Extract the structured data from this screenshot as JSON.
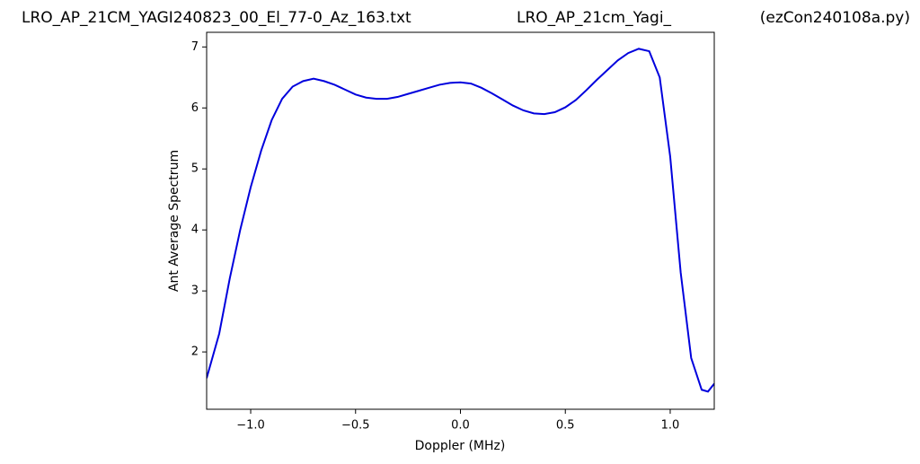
{
  "chart_data": {
    "type": "line",
    "title": "LRO_AP_21CM_YAGI240823_00_El_77-0_Az_163.txt",
    "subtitle": "LRO_AP_21cm_Yagi_",
    "annotation": "(ezCon240108a.py)",
    "x_label": "Doppler (MHz)",
    "y_label": "Ant Average Spectrum",
    "x": [
      -1.21,
      -1.15,
      -1.1,
      -1.05,
      -1.0,
      -0.95,
      -0.9,
      -0.85,
      -0.8,
      -0.75,
      -0.7,
      -0.65,
      -0.6,
      -0.55,
      -0.5,
      -0.45,
      -0.4,
      -0.35,
      -0.3,
      -0.25,
      -0.2,
      -0.15,
      -0.1,
      -0.05,
      0.0,
      0.05,
      0.1,
      0.15,
      0.2,
      0.25,
      0.3,
      0.35,
      0.4,
      0.45,
      0.5,
      0.55,
      0.6,
      0.65,
      0.7,
      0.75,
      0.8,
      0.85,
      0.9,
      0.95,
      1.0,
      1.05,
      1.1,
      1.15,
      1.18,
      1.21
    ],
    "series": [
      {
        "name": "Ant Average Spectrum",
        "color": "#0000dd",
        "values": [
          1.57,
          2.3,
          3.2,
          4.0,
          4.7,
          5.3,
          5.8,
          6.15,
          6.35,
          6.44,
          6.48,
          6.44,
          6.38,
          6.3,
          6.22,
          6.17,
          6.15,
          6.15,
          6.18,
          6.23,
          6.28,
          6.33,
          6.38,
          6.41,
          6.42,
          6.4,
          6.33,
          6.24,
          6.14,
          6.04,
          5.96,
          5.91,
          5.9,
          5.93,
          6.01,
          6.13,
          6.29,
          6.46,
          6.62,
          6.78,
          6.9,
          6.97,
          6.93,
          6.5,
          5.2,
          3.3,
          1.9,
          1.38,
          1.35,
          1.48
        ]
      }
    ],
    "xlim": [
      -1.21,
      1.21
    ],
    "ylim": [
      1.06,
      7.24
    ],
    "xticks": [
      {
        "value": -1.0,
        "label": "−1.0"
      },
      {
        "value": -0.5,
        "label": "−0.5"
      },
      {
        "value": 0.0,
        "label": "0.0"
      },
      {
        "value": 0.5,
        "label": "0.5"
      },
      {
        "value": 1.0,
        "label": "1.0"
      }
    ],
    "yticks": [
      2,
      3,
      4,
      5,
      6,
      7
    ]
  }
}
